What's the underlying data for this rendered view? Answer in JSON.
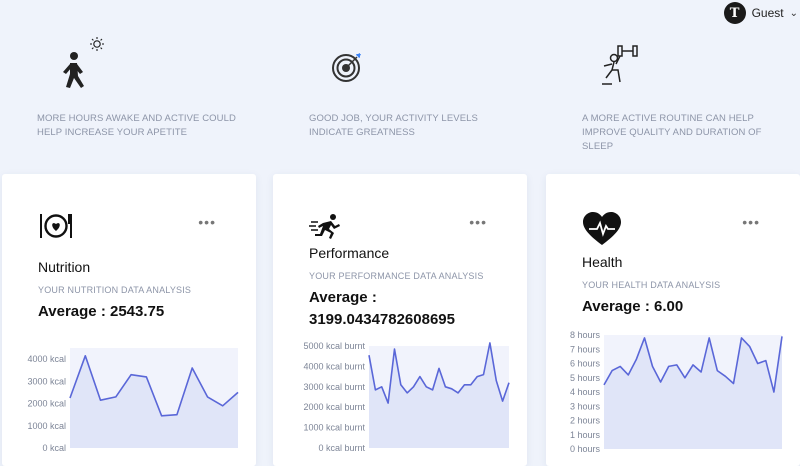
{
  "user": {
    "avatar_letter": "T",
    "name": "Guest"
  },
  "tips": [
    {
      "icon": "walking-person-icon",
      "text": "MORE HOURS AWAKE AND ACTIVE COULD HELP INCREASE YOUR APETITE"
    },
    {
      "icon": "target-icon",
      "text": "GOOD JOB, YOUR ACTIVITY LEVELS INDICATE GREATNESS"
    },
    {
      "icon": "workout-icon",
      "text": "A MORE ACTIVE ROUTINE CAN HELP IMPROVE QUALITY AND DURATION OF SLEEP"
    }
  ],
  "cards": [
    {
      "icon": "plate-icon",
      "title": "Nutrition",
      "subtitle": "YOUR NUTRITION DATA ANALYSIS",
      "average": "Average : 2543.75"
    },
    {
      "icon": "runner-icon",
      "title": "Performance",
      "subtitle": "YOUR PERFORMANCE DATA ANALYSIS",
      "average": "Average : 3199.0434782608695"
    },
    {
      "icon": "heart-pulse-icon",
      "title": "Health",
      "subtitle": "YOUR HEALTH DATA ANALYSIS",
      "average": "Average : 6.00"
    }
  ],
  "chart_data": [
    {
      "type": "area",
      "ticks": [
        "4000 kcal",
        "3000 kcal",
        "2000 kcal",
        "1000 kcal",
        "0 kcal"
      ],
      "ylim": [
        0,
        4500
      ],
      "values": [
        2250,
        4150,
        2150,
        2300,
        3300,
        3200,
        1450,
        1500,
        3600,
        2300,
        1900,
        2500
      ],
      "color": "#5a67d8"
    },
    {
      "type": "area",
      "ticks": [
        "5000 kcal burnt",
        "4000 kcal burnt",
        "3000 kcal burnt",
        "2000 kcal burnt",
        "1000 kcal burnt",
        "0 kcal burnt"
      ],
      "ylim": [
        0,
        5000
      ],
      "values": [
        4550,
        2850,
        3000,
        2200,
        4850,
        3100,
        2700,
        3000,
        3500,
        3000,
        2850,
        3900,
        3000,
        2900,
        2700,
        3100,
        3100,
        3500,
        3600,
        5150,
        3300,
        2300,
        3200
      ],
      "color": "#5a67d8"
    },
    {
      "type": "area",
      "ticks": [
        "8 hours",
        "7 hours",
        "6 hours",
        "5 hours",
        "4 hours",
        "3 hours",
        "2 hours",
        "1 hours",
        "0 hours"
      ],
      "ylim": [
        0,
        8
      ],
      "values": [
        4.5,
        5.5,
        5.8,
        5.2,
        6.3,
        7.8,
        5.8,
        4.7,
        5.8,
        5.9,
        5.0,
        5.9,
        5.4,
        7.8,
        5.5,
        5.1,
        4.6,
        7.8,
        7.2,
        6.0,
        6.2,
        4.0,
        7.9
      ],
      "color": "#5a67d8"
    }
  ]
}
